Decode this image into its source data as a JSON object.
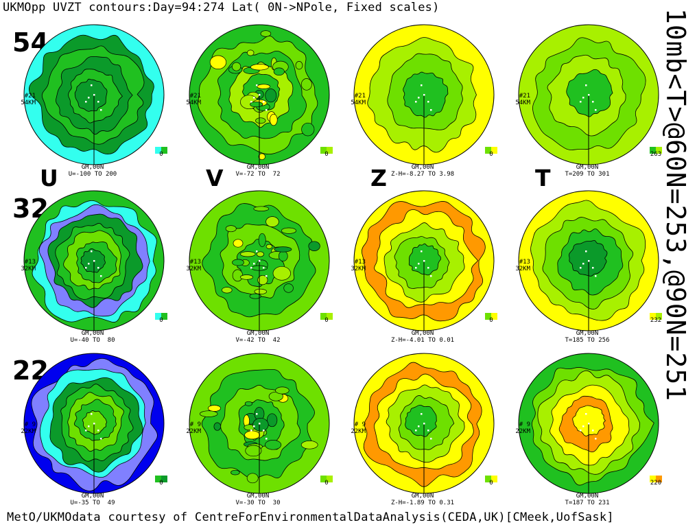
{
  "title": "UKMOpp UVZT contours:Day=94:274 Lat( 0N->NPole, Fixed scales)",
  "side_title": "10mb<T>@60N=253,@90N=251",
  "footer": "MetO/UKMOdata courtesy of CentreForEnvironmentalDataAnalysis(CEDA,UK)[CMeek,UofSask]",
  "columns": [
    "U",
    "V",
    "Z",
    "T"
  ],
  "altitudes": [
    "54",
    "32",
    "22"
  ],
  "colors": {
    "blue": "#0000ee",
    "purple": "#8080ff",
    "cyan": "#33ffee",
    "dgreen": "#0b9a2a",
    "green": "#20c020",
    "lgreen": "#6ee000",
    "ygreen": "#a8f000",
    "yellow": "#ffff00",
    "orange": "#ff9900",
    "white": "#ffffff"
  },
  "panels": [
    {
      "id": "u54",
      "level_line1": "#21",
      "level_line2": "54KM",
      "gm_label": "GM,00N",
      "range": "U=-100 TO 200",
      "legend_value": "0",
      "legend": [
        "cyan",
        "green"
      ],
      "rings": [
        "cyan",
        "dgreen",
        "green",
        "dgreen",
        "green",
        "dgreen"
      ]
    },
    {
      "id": "v54",
      "level_line1": "#21",
      "level_line2": "54KM",
      "gm_label": "GM,00N",
      "range": "V=-72 TO  72",
      "legend_value": "0",
      "legend": [
        "lgreen",
        "ygreen"
      ],
      "rings": [
        "green",
        "lgreen",
        "green",
        "ygreen",
        "green"
      ]
    },
    {
      "id": "z54",
      "level_line1": "#21",
      "level_line2": "54KM",
      "gm_label": "GM,00N",
      "range": "Z-H=-8.27 TO 3.98",
      "legend_value": "0",
      "legend": [
        "lgreen",
        "yellow"
      ],
      "rings": [
        "yellow",
        "ygreen",
        "lgreen",
        "green"
      ]
    },
    {
      "id": "t54",
      "level_line1": "#21",
      "level_line2": "54KM",
      "gm_label": "GM,00N",
      "range": "T=209 TO 301",
      "legend_value": "263",
      "legend": [
        "green",
        "ygreen"
      ],
      "rings": [
        "ygreen",
        "lgreen",
        "ygreen",
        "green"
      ]
    },
    {
      "id": "u32",
      "level_line1": "#13",
      "level_line2": "32KM",
      "gm_label": "GM,00N",
      "range": "U=-40 TO  80",
      "legend_value": "0",
      "legend": [
        "cyan",
        "green"
      ],
      "rings": [
        "green",
        "cyan",
        "purple",
        "dgreen",
        "green",
        "lgreen",
        "green",
        "dgreen"
      ]
    },
    {
      "id": "v32",
      "level_line1": "#13",
      "level_line2": "32KM",
      "gm_label": "GM,00N",
      "range": "V=-42 TO  42",
      "legend_value": "0",
      "legend": [
        "lgreen",
        "ygreen"
      ],
      "rings": [
        "lgreen",
        "green",
        "lgreen",
        "green"
      ]
    },
    {
      "id": "z32",
      "level_line1": "#13",
      "level_line2": "32KM",
      "gm_label": "GM,00N",
      "range": "Z-H=-4.01 TO 0.01",
      "legend_value": "0",
      "legend": [
        "lgreen",
        "yellow"
      ],
      "rings": [
        "yellow",
        "orange",
        "yellow",
        "ygreen",
        "lgreen",
        "green"
      ]
    },
    {
      "id": "t32",
      "level_line1": "#13",
      "level_line2": "32KM",
      "gm_label": "GM,00N",
      "range": "T=185 TO 256",
      "legend_value": "232",
      "legend": [
        "yellow",
        "ygreen"
      ],
      "rings": [
        "yellow",
        "ygreen",
        "lgreen",
        "green",
        "dgreen"
      ]
    },
    {
      "id": "u22",
      "level_line1": "# 9",
      "level_line2": "22KM",
      "gm_label": "GM,00N",
      "range": "U=-35 TO  49",
      "legend_value": "0",
      "legend": [
        "green",
        "dgreen"
      ],
      "rings": [
        "blue",
        "purple",
        "cyan",
        "dgreen",
        "green",
        "lgreen",
        "green",
        "lgreen"
      ]
    },
    {
      "id": "v22",
      "level_line1": "# 9",
      "level_line2": "22KM",
      "gm_label": "GM,00N",
      "range": "V=-30 TO  30",
      "legend_value": "0",
      "legend": [
        "lgreen",
        "ygreen"
      ],
      "rings": [
        "lgreen",
        "green",
        "lgreen",
        "green"
      ]
    },
    {
      "id": "z22",
      "level_line1": "# 9",
      "level_line2": "22KM",
      "gm_label": "GM,00N",
      "range": "Z-H=-1.89 TO 0.31",
      "legend_value": "0",
      "legend": [
        "lgreen",
        "yellow"
      ],
      "rings": [
        "yellow",
        "orange",
        "yellow",
        "ygreen",
        "lgreen",
        "green"
      ]
    },
    {
      "id": "t22",
      "level_line1": "# 9",
      "level_line2": "22KM",
      "gm_label": "GM,00N",
      "range": "T=187 TO 231",
      "legend_value": "220",
      "legend": [
        "yellow",
        "orange"
      ],
      "rings": [
        "green",
        "lgreen",
        "ygreen",
        "yellow",
        "orange",
        "yellow"
      ]
    }
  ]
}
